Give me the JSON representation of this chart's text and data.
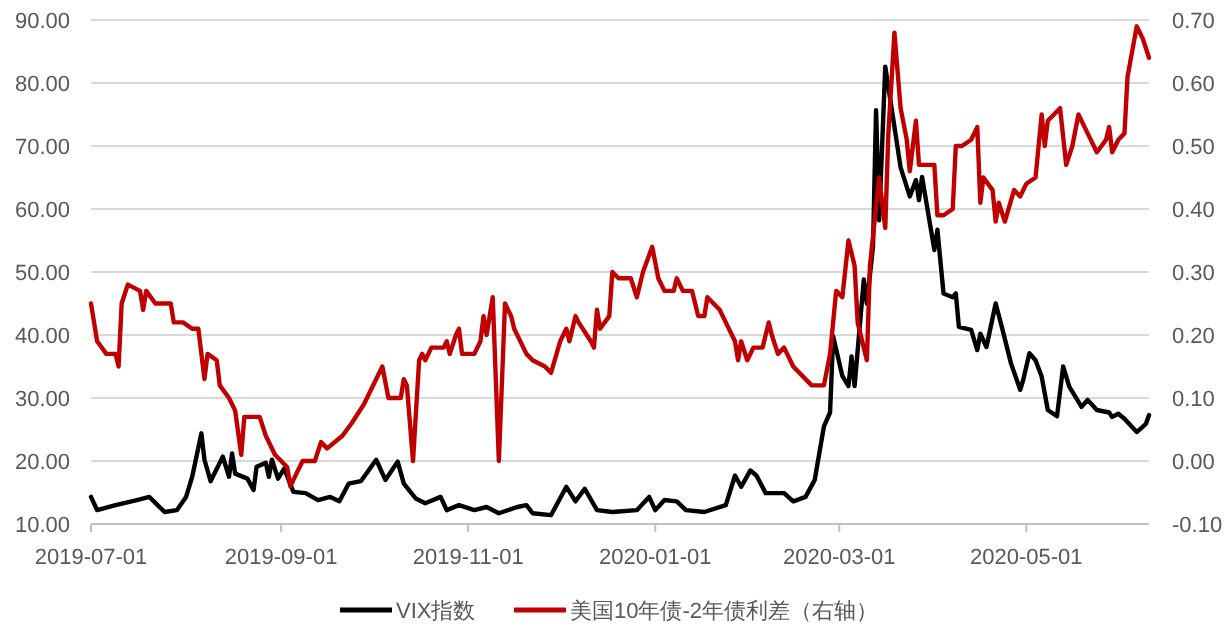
{
  "chart_data": {
    "type": "line",
    "grid": "y",
    "legend": "bottom",
    "xlim": [
      "2019-07-01",
      "2020-06-10"
    ],
    "xticks": [
      "2019-07-01",
      "2019-09-01",
      "2019-11-01",
      "2020-01-01",
      "2020-03-01",
      "2020-05-01"
    ],
    "ylim": [
      10,
      90
    ],
    "yticks": [
      {
        "value": 10,
        "label": "10.00"
      },
      {
        "value": 20,
        "label": "20.00"
      },
      {
        "value": 30,
        "label": "30.00"
      },
      {
        "value": 40,
        "label": "40.00"
      },
      {
        "value": 50,
        "label": "50.00"
      },
      {
        "value": 60,
        "label": "60.00"
      },
      {
        "value": 70,
        "label": "70.00"
      },
      {
        "value": 80,
        "label": "80.00"
      },
      {
        "value": 90,
        "label": "90.00"
      }
    ],
    "y2lim": [
      -0.1,
      0.7
    ],
    "y2ticks": [
      {
        "value": -0.1,
        "label": "-0.10"
      },
      {
        "value": 0,
        "label": "0.00"
      },
      {
        "value": 0.1,
        "label": "0.10"
      },
      {
        "value": 0.2,
        "label": "0.20"
      },
      {
        "value": 0.3,
        "label": "0.30"
      },
      {
        "value": 0.4,
        "label": "0.40"
      },
      {
        "value": 0.5,
        "label": "0.50"
      },
      {
        "value": 0.6,
        "label": "0.60"
      },
      {
        "value": 0.7,
        "label": "0.70"
      }
    ],
    "series": [
      {
        "name": "VIX指数",
        "color": "#000000",
        "x": [
          "2019-07-01",
          "2019-07-03",
          "2019-07-09",
          "2019-07-16",
          "2019-07-20",
          "2019-07-25",
          "2019-07-29",
          "2019-08-01",
          "2019-08-03",
          "2019-08-06",
          "2019-08-07",
          "2019-08-09",
          "2019-08-13",
          "2019-08-15",
          "2019-08-16",
          "2019-08-17",
          "2019-08-21",
          "2019-08-23",
          "2019-08-24",
          "2019-08-27",
          "2019-08-28",
          "2019-08-29",
          "2019-08-31",
          "2019-09-02",
          "2019-09-05",
          "2019-09-09",
          "2019-09-13",
          "2019-09-17",
          "2019-09-20",
          "2019-09-23",
          "2019-09-27",
          "2019-10-02",
          "2019-10-05",
          "2019-10-09",
          "2019-10-11",
          "2019-10-15",
          "2019-10-18",
          "2019-10-23",
          "2019-10-25",
          "2019-10-29",
          "2019-11-03",
          "2019-11-07",
          "2019-11-11",
          "2019-11-17",
          "2019-11-20",
          "2019-11-22",
          "2019-11-28",
          "2019-12-03",
          "2019-12-06",
          "2019-12-09",
          "2019-12-13",
          "2019-12-18",
          "2019-12-26",
          "2019-12-30",
          "2020-01-01",
          "2020-01-04",
          "2020-01-08",
          "2020-01-11",
          "2020-01-17",
          "2020-01-24",
          "2020-01-27",
          "2020-01-29",
          "2020-02-01",
          "2020-02-03",
          "2020-02-06",
          "2020-02-12",
          "2020-02-15",
          "2020-02-19",
          "2020-02-22",
          "2020-02-25",
          "2020-02-27",
          "2020-02-28",
          "2020-03-02",
          "2020-03-04",
          "2020-03-05",
          "2020-03-06",
          "2020-03-09",
          "2020-03-10",
          "2020-03-12",
          "2020-03-13",
          "2020-03-14",
          "2020-03-16",
          "2020-03-18",
          "2020-03-21",
          "2020-03-24",
          "2020-03-26",
          "2020-03-27",
          "2020-03-28",
          "2020-03-30",
          "2020-04-01",
          "2020-04-02",
          "2020-04-04",
          "2020-04-07",
          "2020-04-08",
          "2020-04-09",
          "2020-04-13",
          "2020-04-15",
          "2020-04-16",
          "2020-04-18",
          "2020-04-21",
          "2020-04-23",
          "2020-04-26",
          "2020-04-29",
          "2020-04-30",
          "2020-05-02",
          "2020-05-04",
          "2020-05-06",
          "2020-05-08",
          "2020-05-11",
          "2020-05-13",
          "2020-05-15",
          "2020-05-19",
          "2020-05-21",
          "2020-05-24",
          "2020-05-28",
          "2020-05-29",
          "2020-05-31",
          "2020-06-02",
          "2020-06-06",
          "2020-06-09",
          "2020-06-10"
        ],
        "values": [
          14.3,
          12.2,
          13.0,
          13.8,
          14.3,
          11.9,
          12.2,
          14.3,
          17.5,
          24.4,
          20.2,
          16.8,
          20.7,
          17.5,
          21.2,
          18.0,
          17.2,
          15.4,
          19.1,
          19.7,
          17.5,
          20.2,
          17.2,
          18.8,
          15.1,
          14.9,
          13.8,
          14.3,
          13.6,
          16.4,
          16.8,
          20.2,
          17.0,
          19.9,
          16.4,
          14.0,
          13.3,
          14.3,
          12.2,
          13.0,
          12.2,
          12.7,
          11.7,
          12.7,
          13.0,
          11.7,
          11.4,
          15.9,
          13.6,
          15.6,
          12.2,
          11.9,
          12.2,
          14.3,
          12.2,
          13.8,
          13.6,
          12.2,
          11.9,
          13.0,
          17.7,
          15.9,
          18.5,
          17.7,
          14.9,
          14.9,
          13.6,
          14.3,
          17.0,
          25.5,
          27.7,
          39.8,
          33.5,
          31.9,
          36.6,
          31.9,
          48.8,
          45.0,
          54.0,
          75.7,
          58.2,
          82.6,
          76.2,
          66.6,
          62.0,
          64.6,
          61.4,
          65.1,
          59.3,
          53.5,
          56.7,
          46.6,
          46.0,
          46.6,
          41.3,
          40.8,
          37.6,
          40.2,
          38.1,
          45.0,
          41.3,
          35.5,
          31.3,
          32.9,
          37.1,
          36.0,
          33.4,
          28.1,
          27.1,
          35.0,
          31.8,
          28.6,
          29.7,
          28.1,
          27.7,
          27.0,
          27.5,
          26.7,
          24.6,
          25.9,
          27.3
        ]
      },
      {
        "name": "美国10年债-2年债利差（右轴）",
        "color": "#c00000",
        "axis": "y2",
        "x": [
          "2019-07-01",
          "2019-07-03",
          "2019-07-06",
          "2019-07-09",
          "2019-07-10",
          "2019-07-11",
          "2019-07-13",
          "2019-07-17",
          "2019-07-18",
          "2019-07-19",
          "2019-07-22",
          "2019-07-27",
          "2019-07-28",
          "2019-07-31",
          "2019-08-03",
          "2019-08-05",
          "2019-08-07",
          "2019-08-08",
          "2019-08-11",
          "2019-08-12",
          "2019-08-15",
          "2019-08-17",
          "2019-08-19",
          "2019-08-20",
          "2019-08-22",
          "2019-08-25",
          "2019-08-27",
          "2019-08-30",
          "2019-09-01",
          "2019-09-03",
          "2019-09-04",
          "2019-09-05",
          "2019-09-08",
          "2019-09-12",
          "2019-09-14",
          "2019-09-16",
          "2019-09-21",
          "2019-09-24",
          "2019-09-28",
          "2019-10-04",
          "2019-10-06",
          "2019-10-10",
          "2019-10-11",
          "2019-10-12",
          "2019-10-14",
          "2019-10-16",
          "2019-10-17",
          "2019-10-18",
          "2019-10-20",
          "2019-10-24",
          "2019-10-25",
          "2019-10-26",
          "2019-10-28",
          "2019-10-29",
          "2019-10-30",
          "2019-11-03",
          "2019-11-05",
          "2019-11-06",
          "2019-11-07",
          "2019-11-09",
          "2019-11-11",
          "2019-11-13",
          "2019-11-15",
          "2019-11-16",
          "2019-11-19",
          "2019-11-20",
          "2019-11-22",
          "2019-11-26",
          "2019-11-28",
          "2019-12-01",
          "2019-12-03",
          "2019-12-04",
          "2019-12-06",
          "2019-12-07",
          "2019-12-11",
          "2019-12-12",
          "2019-12-13",
          "2019-12-14",
          "2019-12-17",
          "2019-12-18",
          "2019-12-20",
          "2019-12-24",
          "2019-12-26",
          "2019-12-28",
          "2019-12-31",
          "2020-01-02",
          "2020-01-04",
          "2020-01-07",
          "2020-01-08",
          "2020-01-10",
          "2020-01-13",
          "2020-01-15",
          "2020-01-17",
          "2020-01-18",
          "2020-01-22",
          "2020-01-23",
          "2020-01-27",
          "2020-01-28",
          "2020-01-29",
          "2020-01-31",
          "2020-02-02",
          "2020-02-05",
          "2020-02-07",
          "2020-02-08",
          "2020-02-10",
          "2020-02-12",
          "2020-02-15",
          "2020-02-19",
          "2020-02-21",
          "2020-02-25",
          "2020-02-27",
          "2020-02-29",
          "2020-03-02",
          "2020-03-04",
          "2020-03-06",
          "2020-03-07",
          "2020-03-10",
          "2020-03-11",
          "2020-03-14",
          "2020-03-16",
          "2020-03-17",
          "2020-03-19",
          "2020-03-21",
          "2020-03-23",
          "2020-03-24",
          "2020-03-26",
          "2020-03-27",
          "2020-03-29",
          "2020-04-01",
          "2020-04-02",
          "2020-04-04",
          "2020-04-07",
          "2020-04-08",
          "2020-04-10",
          "2020-04-13",
          "2020-04-15",
          "2020-04-16",
          "2020-04-17",
          "2020-04-20",
          "2020-04-21",
          "2020-04-22",
          "2020-04-24",
          "2020-04-27",
          "2020-04-29",
          "2020-05-01",
          "2020-05-04",
          "2020-05-06",
          "2020-05-07",
          "2020-05-08",
          "2020-05-12",
          "2020-05-14",
          "2020-05-16",
          "2020-05-18",
          "2020-05-21",
          "2020-05-24",
          "2020-05-27",
          "2020-05-28",
          "2020-05-29",
          "2020-05-31",
          "2020-06-02",
          "2020-06-03",
          "2020-06-06",
          "2020-06-08",
          "2020-06-10"
        ],
        "values": [
          0.25,
          0.19,
          0.17,
          0.17,
          0.15,
          0.25,
          0.28,
          0.27,
          0.24,
          0.27,
          0.25,
          0.25,
          0.22,
          0.22,
          0.21,
          0.21,
          0.13,
          0.17,
          0.16,
          0.12,
          0.1,
          0.08,
          0.01,
          0.07,
          0.07,
          0.07,
          0.04,
          0.01,
          0.0,
          -0.01,
          -0.04,
          -0.03,
          0.0,
          0.0,
          0.03,
          0.02,
          0.04,
          0.06,
          0.09,
          0.15,
          0.1,
          0.1,
          0.13,
          0.12,
          0.0,
          0.16,
          0.17,
          0.16,
          0.18,
          0.18,
          0.19,
          0.17,
          0.2,
          0.21,
          0.17,
          0.17,
          0.19,
          0.23,
          0.2,
          0.26,
          0.0,
          0.25,
          0.23,
          0.21,
          0.18,
          0.17,
          0.16,
          0.15,
          0.14,
          0.19,
          0.21,
          0.19,
          0.23,
          0.22,
          0.19,
          0.18,
          0.24,
          0.21,
          0.23,
          0.3,
          0.29,
          0.29,
          0.26,
          0.3,
          0.34,
          0.29,
          0.27,
          0.27,
          0.29,
          0.27,
          0.27,
          0.23,
          0.23,
          0.26,
          0.24,
          0.23,
          0.19,
          0.16,
          0.19,
          0.16,
          0.18,
          0.18,
          0.22,
          0.2,
          0.17,
          0.18,
          0.15,
          0.13,
          0.12,
          0.12,
          0.17,
          0.27,
          0.26,
          0.35,
          0.31,
          0.22,
          0.16,
          0.31,
          0.45,
          0.37,
          0.52,
          0.68,
          0.56,
          0.51,
          0.46,
          0.54,
          0.47,
          0.47,
          0.47,
          0.39,
          0.39,
          0.4,
          0.5,
          0.5,
          0.51,
          0.53,
          0.41,
          0.45,
          0.43,
          0.38,
          0.41,
          0.38,
          0.43,
          0.42,
          0.44,
          0.45,
          0.55,
          0.5,
          0.54,
          0.56,
          0.47,
          0.5,
          0.55,
          0.52,
          0.49,
          0.51,
          0.53,
          0.49,
          0.51,
          0.52,
          0.61,
          0.69,
          0.67,
          0.64
        ]
      }
    ]
  }
}
